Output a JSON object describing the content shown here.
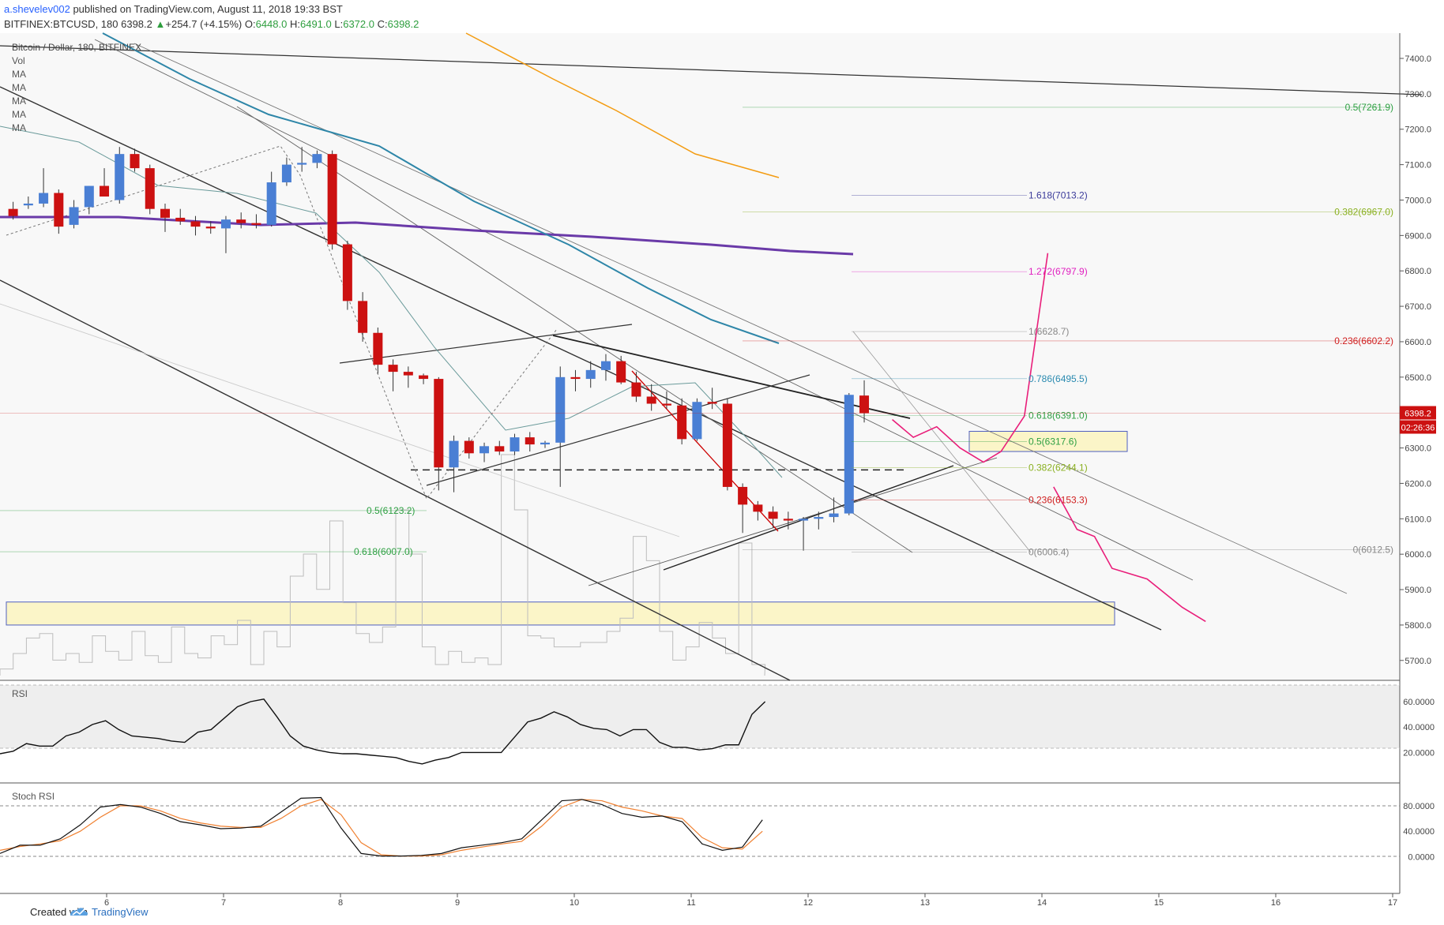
{
  "header": {
    "author": "a.shevelev002",
    "published": " published on TradingView.com, August 11, 2018 19:33 BST",
    "symbol_line": "BITFINEX:BTCUSD, 180",
    "last": "6398.2",
    "change_arrow": "▲",
    "change": "+254.7 (+4.15%)",
    "o_label": "O:",
    "o": "6448.0",
    "h_label": "H:",
    "h": "6491.0",
    "l_label": "L:",
    "l": "6372.0",
    "c_label": "C:",
    "c": "6398.2"
  },
  "legend": {
    "title": "Bitcoin / Dollar, 180, BITFINEX",
    "items": [
      "Vol",
      "MA",
      "MA",
      "MA",
      "MA",
      "MA"
    ]
  },
  "footer": {
    "created": "Created with",
    "brand": "TradingView"
  },
  "colors": {
    "up": "#4a7fd4",
    "down": "#cc1111",
    "accent": "#e91e7a",
    "ma_purple": "#6a3aa8",
    "ma_teal": "#2e86a8",
    "ma_orange": "#f39c12"
  },
  "chart_data": [
    {
      "type": "candlestick",
      "title": "Bitcoin / Dollar, 180, BITFINEX",
      "y_axis_ticks": [
        "7400.0",
        "7300.0",
        "7200.0",
        "7100.0",
        "7000.0",
        "6900.0",
        "6800.0",
        "6700.0",
        "6600.0",
        "6500.0",
        "6400.0",
        "6300.0",
        "6200.0",
        "6100.0",
        "6000.0",
        "5900.0",
        "5800.0",
        "5700.0"
      ],
      "x_axis_ticks": [
        "6",
        "7",
        "8",
        "9",
        "10",
        "11",
        "12",
        "13",
        "14",
        "15",
        "16",
        "17"
      ],
      "price_label": "6398.2",
      "countdown_label": "02:26:36",
      "candles": [
        [
          5.2,
          6975,
          6995,
          6945,
          6955
        ],
        [
          5.33,
          6985,
          7010,
          6975,
          6990
        ],
        [
          5.46,
          6990,
          7090,
          6980,
          7020
        ],
        [
          5.59,
          7020,
          7030,
          6905,
          6925
        ],
        [
          5.72,
          6930,
          7000,
          6920,
          6980
        ],
        [
          5.85,
          6980,
          7040,
          6960,
          7040
        ],
        [
          5.98,
          7040,
          7090,
          7020,
          7010
        ],
        [
          6.11,
          7000,
          7150,
          6990,
          7130
        ],
        [
          6.24,
          7130,
          7145,
          7080,
          7090
        ],
        [
          6.37,
          7090,
          7100,
          6960,
          6975
        ],
        [
          6.5,
          6975,
          6990,
          6910,
          6950
        ],
        [
          6.63,
          6950,
          6975,
          6930,
          6940
        ],
        [
          6.76,
          6940,
          6955,
          6900,
          6925
        ],
        [
          6.89,
          6925,
          6940,
          6905,
          6920
        ],
        [
          7.02,
          6920,
          6955,
          6850,
          6945
        ],
        [
          7.15,
          6945,
          6965,
          6920,
          6935
        ],
        [
          7.28,
          6935,
          6960,
          6920,
          6930
        ],
        [
          7.41,
          6930,
          7080,
          6925,
          7050
        ],
        [
          7.54,
          7050,
          7120,
          7040,
          7100
        ],
        [
          7.67,
          7100,
          7150,
          7080,
          7105
        ],
        [
          7.8,
          7105,
          7140,
          7090,
          7130
        ],
        [
          7.93,
          7130,
          7140,
          6860,
          6875
        ],
        [
          8.06,
          6875,
          6885,
          6690,
          6715
        ],
        [
          8.19,
          6715,
          6740,
          6600,
          6625
        ],
        [
          8.32,
          6625,
          6640,
          6510,
          6535
        ],
        [
          8.45,
          6535,
          6550,
          6460,
          6515
        ],
        [
          8.58,
          6515,
          6530,
          6470,
          6505
        ],
        [
          8.71,
          6505,
          6510,
          6480,
          6495
        ],
        [
          8.84,
          6495,
          6500,
          6180,
          6245
        ],
        [
          8.97,
          6245,
          6335,
          6175,
          6320
        ],
        [
          9.1,
          6320,
          6330,
          6270,
          6285
        ],
        [
          9.23,
          6285,
          6315,
          6260,
          6305
        ],
        [
          9.36,
          6305,
          6320,
          6280,
          6290
        ],
        [
          9.49,
          6290,
          6340,
          6280,
          6330
        ],
        [
          9.62,
          6330,
          6345,
          6290,
          6310
        ],
        [
          9.75,
          6310,
          6320,
          6300,
          6315
        ],
        [
          9.88,
          6315,
          6530,
          6190,
          6500
        ],
        [
          10.01,
          6500,
          6520,
          6460,
          6495
        ],
        [
          10.14,
          6495,
          6545,
          6470,
          6520
        ],
        [
          10.27,
          6520,
          6565,
          6490,
          6545
        ],
        [
          10.4,
          6545,
          6560,
          6480,
          6485
        ],
        [
          10.53,
          6485,
          6515,
          6430,
          6445
        ],
        [
          10.66,
          6445,
          6480,
          6405,
          6425
        ],
        [
          10.79,
          6425,
          6460,
          6410,
          6420
        ],
        [
          10.92,
          6420,
          6440,
          6310,
          6325
        ],
        [
          11.05,
          6325,
          6440,
          6320,
          6430
        ],
        [
          11.18,
          6430,
          6470,
          6410,
          6425
        ],
        [
          11.31,
          6425,
          6440,
          6180,
          6190
        ],
        [
          11.44,
          6190,
          6200,
          6060,
          6140
        ],
        [
          11.57,
          6140,
          6150,
          6095,
          6120
        ],
        [
          11.7,
          6120,
          6135,
          6075,
          6100
        ],
        [
          11.83,
          6100,
          6120,
          6070,
          6095
        ],
        [
          11.96,
          6095,
          6105,
          6010,
          6100
        ],
        [
          12.09,
          6100,
          6120,
          6070,
          6105
        ],
        [
          12.22,
          6105,
          6160,
          6090,
          6115
        ],
        [
          12.35,
          6115,
          6455,
          6110,
          6450
        ],
        [
          12.48,
          6448,
          6491,
          6372,
          6398.2
        ]
      ],
      "fibonacci_labels": [
        {
          "label": "0.5(7261.9)",
          "value": 7261.9
        },
        {
          "label": "1.618(7013.2)",
          "value": 7013.2
        },
        {
          "label": "0.382(6967.0)",
          "value": 6967.0
        },
        {
          "label": "1.272(6797.9)",
          "value": 6797.9
        },
        {
          "label": "1(6628.7)",
          "value": 6628.7
        },
        {
          "label": "0.236(6602.2)",
          "value": 6602.2
        },
        {
          "label": "0.786(6495.5)",
          "value": 6495.5
        },
        {
          "label": "0.618(6391.0)",
          "value": 6391.0
        },
        {
          "label": "0.5(6317.6)",
          "value": 6317.6
        },
        {
          "label": "0.382(6244.1)",
          "value": 6244.1
        },
        {
          "label": "0.236(6153.3)",
          "value": 6153.3
        },
        {
          "label": "0.5(6123.2)",
          "value": 6123.2
        },
        {
          "label": "0(6006.4)",
          "value": 6006.4
        },
        {
          "label": "0.618(6007.0)",
          "value": 6007.0
        },
        {
          "label": "0(6012.5)",
          "value": 6012.5
        }
      ],
      "projection_up": [
        [
          12.72,
          6380
        ],
        [
          12.9,
          6330
        ],
        [
          13.1,
          6360
        ],
        [
          13.3,
          6300
        ],
        [
          13.5,
          6260
        ],
        [
          13.65,
          6290
        ],
        [
          13.85,
          6390
        ],
        [
          14.05,
          6850
        ]
      ],
      "projection_down": [
        [
          14.1,
          6190
        ],
        [
          14.3,
          6070
        ],
        [
          14.45,
          6050
        ],
        [
          14.6,
          5960
        ],
        [
          14.9,
          5930
        ],
        [
          15.2,
          5850
        ],
        [
          15.4,
          5810
        ]
      ]
    },
    {
      "type": "line",
      "title": "RSI",
      "y_axis_ticks": [
        "60.0000",
        "40.0000",
        "20.0000"
      ],
      "values": [
        19,
        21,
        27,
        25,
        25,
        33,
        36,
        42,
        45,
        38,
        33,
        32,
        31,
        29,
        28,
        36,
        38,
        47,
        56,
        60,
        62,
        48,
        33,
        25,
        22,
        20,
        19,
        19,
        18,
        17,
        16,
        13,
        11,
        14,
        16,
        20,
        20,
        20,
        20,
        32,
        44,
        47,
        52,
        48,
        42,
        39,
        38,
        33,
        38,
        38,
        28,
        24,
        24,
        22,
        23,
        26,
        26,
        50,
        60
      ]
    },
    {
      "type": "line",
      "title": "Stoch RSI",
      "y_axis_ticks": [
        "80.0000",
        "40.0000",
        "0.0000"
      ],
      "series": [
        {
          "values": [
            5,
            18,
            18,
            28,
            50,
            78,
            82,
            78,
            68,
            55,
            50,
            44,
            45,
            48,
            70,
            92,
            93,
            45,
            5,
            1,
            1,
            2,
            5,
            14,
            18,
            22,
            28,
            58,
            88,
            90,
            82,
            68,
            62,
            64,
            55,
            20,
            10,
            15,
            58
          ]
        },
        {
          "values": [
            10,
            16,
            20,
            25,
            40,
            62,
            80,
            80,
            72,
            60,
            53,
            48,
            46,
            46,
            60,
            80,
            90,
            66,
            22,
            3,
            1,
            1,
            3,
            10,
            15,
            20,
            24,
            48,
            78,
            90,
            88,
            78,
            72,
            64,
            60,
            30,
            14,
            12,
            40
          ]
        }
      ]
    }
  ]
}
